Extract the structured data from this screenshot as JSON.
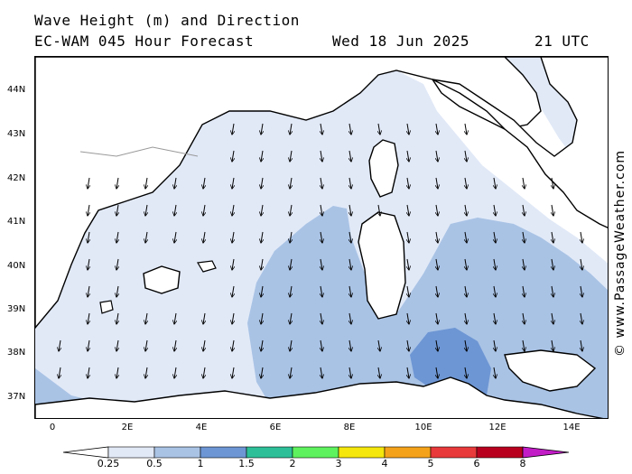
{
  "header": {
    "title": "Wave Height (m) and Direction",
    "model": "EC-WAM 045 Hour Forecast",
    "date": "Wed 18 Jun 2025",
    "time": "21 UTC"
  },
  "watermark": "© www.PassageWeather.com",
  "latitude_labels": [
    "44N",
    "43N",
    "42N",
    "41N",
    "40N",
    "39N",
    "38N",
    "37N"
  ],
  "longitude_labels": [
    "0",
    "2E",
    "4E",
    "6E",
    "8E",
    "10E",
    "12E",
    "14E"
  ],
  "legend": {
    "labels": [
      "0.25",
      "0.5",
      "1",
      "1.5",
      "2",
      "3",
      "4",
      "5",
      "6",
      "8"
    ],
    "colors": [
      "#ffffff",
      "#e1e9f7",
      "#a9c3e5",
      "#6d96d4",
      "#2dbf98",
      "#5ef25e",
      "#f5e60c",
      "#f5a21b",
      "#e83a3a",
      "#b8001e",
      "#c21cc7"
    ]
  },
  "map": {
    "region": "Western Mediterranean",
    "lon_range": [
      -0.5,
      14.8
    ],
    "lat_range": [
      36.6,
      44.8
    ],
    "wave_height_colors": {
      "land": "#ffffff",
      "lt_0_5": "#e1e9f7",
      "0_5_to_1": "#a9c3e5",
      "1_to_1_5": "#6d96d4"
    },
    "arrow_direction": "southward"
  }
}
